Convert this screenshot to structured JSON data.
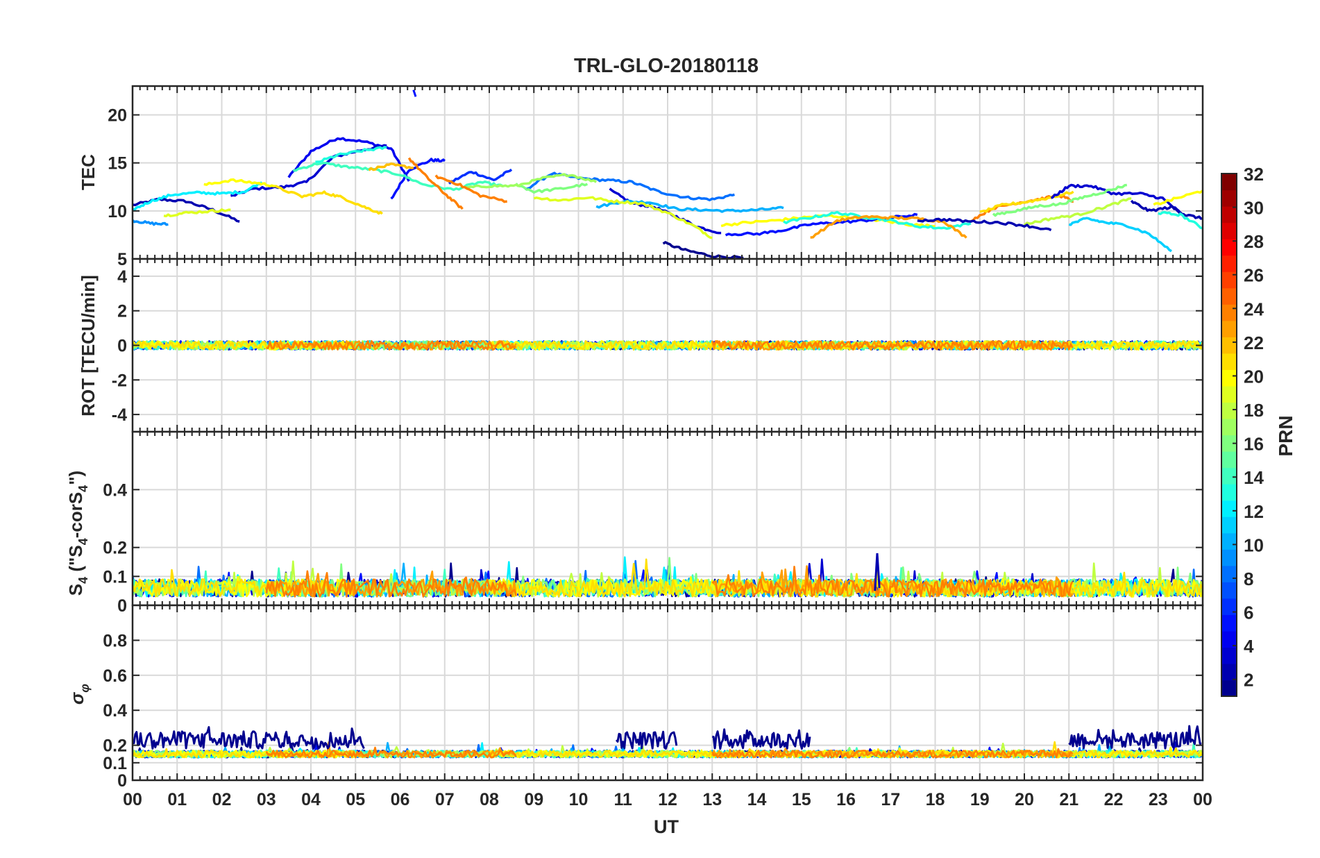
{
  "figure": {
    "title": "TRL-GLO-20180118",
    "xlabel": "UT",
    "xticks": [
      "00",
      "01",
      "02",
      "03",
      "04",
      "05",
      "06",
      "07",
      "08",
      "09",
      "10",
      "11",
      "12",
      "13",
      "14",
      "15",
      "16",
      "17",
      "18",
      "19",
      "20",
      "21",
      "22",
      "23",
      "00"
    ]
  },
  "colorbar": {
    "label": "PRN",
    "range": [
      1,
      32
    ],
    "ticks": [
      2,
      4,
      6,
      8,
      10,
      12,
      14,
      16,
      18,
      20,
      22,
      24,
      26,
      28,
      30,
      32
    ],
    "colors": [
      "#00008f",
      "#0000b0",
      "#0000d0",
      "#0000f0",
      "#0010ff",
      "#0030ff",
      "#0050ff",
      "#0070ff",
      "#0090ff",
      "#00b0ff",
      "#00d0ff",
      "#00f0ff",
      "#20ffdf",
      "#40ffbf",
      "#60ff9f",
      "#80ff80",
      "#9fff60",
      "#bfff40",
      "#dfff20",
      "#ffff00",
      "#ffdf00",
      "#ffbf00",
      "#ff9f00",
      "#ff8000",
      "#ff6000",
      "#ff4000",
      "#ff2000",
      "#ff0000",
      "#df0000",
      "#bf0000",
      "#9f0000",
      "#800000"
    ]
  },
  "chart_data": [
    {
      "type": "line",
      "panel": "TEC",
      "ylabel": "TEC",
      "ylim": [
        5,
        23
      ],
      "yticks": [
        5,
        10,
        15,
        20
      ],
      "xlim": [
        0,
        24
      ],
      "grid": true,
      "series": [
        {
          "prn": 2,
          "x": [
            0.0,
            0.6,
            1.2,
            1.8,
            2.4
          ],
          "y": [
            10.6,
            11.2,
            11.0,
            10.1,
            8.9
          ]
        },
        {
          "prn": 4,
          "x": [
            3.5,
            4.0,
            4.6,
            5.2,
            5.8,
            6.2
          ],
          "y": [
            13.5,
            16.2,
            17.6,
            17.2,
            16.5,
            13.1
          ]
        },
        {
          "prn": 3,
          "x": [
            2.2,
            2.7,
            3.4,
            3.9,
            4.5,
            5.1,
            5.7
          ],
          "y": [
            11.5,
            12.3,
            12.5,
            13.0,
            15.6,
            16.3,
            16.8
          ]
        },
        {
          "prn": 5,
          "x": [
            5.8,
            6.2,
            6.7,
            7.0
          ],
          "y": [
            11.2,
            14.3,
            15.3,
            15.2
          ]
        },
        {
          "prn": 6,
          "x": [
            7.1,
            7.6,
            8.1,
            8.5
          ],
          "y": [
            12.9,
            14.1,
            13.2,
            14.3
          ]
        },
        {
          "prn": 8,
          "x": [
            8.8,
            9.4,
            10.0,
            10.6,
            11.2,
            11.8,
            12.4,
            13.0,
            13.5
          ],
          "y": [
            12.2,
            13.9,
            13.4,
            13.2,
            13.0,
            12.0,
            11.4,
            11.2,
            11.7
          ]
        },
        {
          "prn": 1,
          "x": [
            11.9,
            12.4,
            13.0,
            13.7
          ],
          "y": [
            6.7,
            5.9,
            5.3,
            5.1
          ]
        },
        {
          "prn": 3,
          "x": [
            10.7,
            11.2,
            11.7,
            12.2,
            12.7,
            13.2
          ],
          "y": [
            12.2,
            10.8,
            10.4,
            9.4,
            8.3,
            7.7
          ]
        },
        {
          "prn": 10,
          "x": [
            10.4,
            11.0,
            11.6,
            12.2,
            12.8,
            13.4,
            14.0,
            14.6
          ],
          "y": [
            10.4,
            11.0,
            10.9,
            10.2,
            10.1,
            10.0,
            10.1,
            10.3
          ]
        },
        {
          "prn": 12,
          "x": [
            0.0,
            0.4,
            0.9,
            1.5,
            2.0,
            2.5,
            2.9
          ],
          "y": [
            10.1,
            11.0,
            11.7,
            11.9,
            11.8,
            12.0,
            13.0
          ]
        },
        {
          "prn": 9,
          "x": [
            0.0,
            0.4,
            0.8
          ],
          "y": [
            9.0,
            8.7,
            8.6
          ]
        },
        {
          "prn": 14,
          "x": [
            3.6,
            4.2,
            4.8,
            5.4,
            6.0,
            6.5,
            7.2,
            7.8,
            8.3
          ],
          "y": [
            14.2,
            15.0,
            14.6,
            14.3,
            13.8,
            12.8,
            12.2,
            13.0,
            12.6
          ]
        },
        {
          "prn": 13,
          "x": [
            4.1,
            4.6,
            5.2,
            5.7
          ],
          "y": [
            15.0,
            15.8,
            16.3,
            16.6
          ]
        },
        {
          "prn": 16,
          "x": [
            8.6,
            9.0,
            9.6,
            10.2
          ],
          "y": [
            12.8,
            12.0,
            12.3,
            12.8
          ]
        },
        {
          "prn": 17,
          "x": [
            7.4,
            8.0,
            8.6,
            9.2,
            9.8,
            10.4
          ],
          "y": [
            12.4,
            12.6,
            12.6,
            13.4,
            13.8,
            13.0
          ]
        },
        {
          "prn": 19,
          "x": [
            9.0,
            9.6,
            10.2,
            10.8,
            11.4,
            12.0,
            12.6,
            13.0
          ],
          "y": [
            11.4,
            11.1,
            11.4,
            11.0,
            10.8,
            9.8,
            8.4,
            7.2
          ]
        },
        {
          "prn": 19,
          "x": [
            0.7,
            1.2,
            1.8,
            2.2
          ],
          "y": [
            9.5,
            9.8,
            10.0,
            10.1
          ]
        },
        {
          "prn": 20,
          "x": [
            1.6,
            2.2,
            2.8,
            3.2
          ],
          "y": [
            12.7,
            13.2,
            12.9,
            12.6
          ]
        },
        {
          "prn": 21,
          "x": [
            3.2,
            3.8,
            4.3,
            4.7,
            5.2,
            5.6
          ],
          "y": [
            12.5,
            11.5,
            11.9,
            11.4,
            10.4,
            9.7
          ]
        },
        {
          "prn": 22,
          "x": [
            5.3,
            5.8,
            6.3
          ],
          "y": [
            14.3,
            14.8,
            14.5
          ]
        },
        {
          "prn": 24,
          "x": [
            6.2,
            6.6,
            7.0,
            7.4
          ],
          "y": [
            15.5,
            13.5,
            11.8,
            10.2
          ]
        },
        {
          "prn": 24,
          "x": [
            6.8,
            7.3,
            7.8,
            8.4
          ],
          "y": [
            13.6,
            12.8,
            11.6,
            11.0
          ]
        },
        {
          "prn": 20,
          "x": [
            13.2,
            13.8,
            14.4,
            15.0,
            15.6,
            16.2,
            16.8,
            17.4,
            18.0
          ],
          "y": [
            8.5,
            8.8,
            9.0,
            9.3,
            9.5,
            9.3,
            9.0,
            8.6,
            8.4
          ]
        },
        {
          "prn": 5,
          "x": [
            13.3,
            14.0,
            14.6,
            15.2,
            15.8,
            16.4,
            17.0,
            17.6
          ],
          "y": [
            7.6,
            7.6,
            8.0,
            8.6,
            8.8,
            9.0,
            9.3,
            9.6
          ]
        },
        {
          "prn": 13,
          "x": [
            14.6,
            15.2,
            15.8,
            16.4,
            17.0,
            17.6,
            18.2,
            18.8
          ],
          "y": [
            8.8,
            9.3,
            9.8,
            9.4,
            9.0,
            8.4,
            8.2,
            8.7
          ]
        },
        {
          "prn": 23,
          "x": [
            15.2,
            15.8,
            16.4,
            17.0,
            17.6,
            18.2,
            18.7
          ],
          "y": [
            7.2,
            9.0,
            9.4,
            9.3,
            9.2,
            8.9,
            7.2
          ]
        },
        {
          "prn": 24,
          "x": [
            18.8,
            19.3,
            19.8,
            20.3,
            20.8,
            21.1
          ],
          "y": [
            9.0,
            10.3,
            10.8,
            11.2,
            11.6,
            11.0
          ]
        },
        {
          "prn": 21,
          "x": [
            19.0,
            19.5,
            20.0,
            20.6,
            21.1
          ],
          "y": [
            9.8,
            10.6,
            10.9,
            11.4,
            12.0
          ]
        },
        {
          "prn": 3,
          "x": [
            20.6,
            21.0,
            21.5,
            22.0,
            22.6,
            23.1,
            23.5
          ],
          "y": [
            11.3,
            12.6,
            12.6,
            11.8,
            11.8,
            11.3,
            9.8
          ]
        },
        {
          "prn": 2,
          "x": [
            22.4,
            22.8,
            23.3,
            23.6,
            24.0
          ],
          "y": [
            11.0,
            10.0,
            10.4,
            9.6,
            9.2
          ]
        },
        {
          "prn": 11,
          "x": [
            21.0,
            21.4,
            21.8,
            22.3,
            22.8,
            23.3
          ],
          "y": [
            8.6,
            9.2,
            8.8,
            8.5,
            7.6,
            5.8
          ]
        },
        {
          "prn": 16,
          "x": [
            19.3,
            19.8,
            20.3,
            20.8,
            21.3,
            21.8,
            22.3
          ],
          "y": [
            9.6,
            10.0,
            10.5,
            10.7,
            11.4,
            12.0,
            12.7
          ]
        },
        {
          "prn": 18,
          "x": [
            20.0,
            20.6,
            21.2,
            21.8,
            22.4
          ],
          "y": [
            8.6,
            9.2,
            9.6,
            10.4,
            11.3
          ]
        },
        {
          "prn": 20,
          "x": [
            22.9,
            23.4,
            24.0
          ],
          "y": [
            10.6,
            11.3,
            12.1
          ]
        },
        {
          "prn": 13,
          "x": [
            23.0,
            23.5,
            24.0
          ],
          "y": [
            9.8,
            9.6,
            8.2
          ]
        },
        {
          "prn": 2,
          "x": [
            17.6,
            18.2,
            18.8,
            19.4,
            20.0,
            20.6
          ],
          "y": [
            9.0,
            9.1,
            8.9,
            8.8,
            8.5,
            8.0
          ]
        }
      ]
    },
    {
      "type": "line",
      "panel": "ROT",
      "ylabel": "ROT [TECU/min]",
      "ylim": [
        -5,
        5
      ],
      "yticks": [
        -4,
        -2,
        0,
        2,
        4
      ],
      "xlim": [
        0,
        24
      ],
      "grid": true,
      "series_note": "all PRNs fluctuate within about ±0.4 TECU/min around 0 across the day"
    },
    {
      "type": "line",
      "panel": "S4",
      "ylabel": "S4 (\"S4-corS4\")",
      "ylim": [
        0,
        0.6
      ],
      "yticks": [
        0,
        0.1,
        0.2,
        0.4
      ],
      "xlim": [
        0,
        24
      ],
      "grid": true,
      "series_note": "values mostly 0.02–0.12 with spikes to about 0.17; largest spike about 0.18 near 16.7 UT"
    },
    {
      "type": "line",
      "panel": "sigma_phi",
      "ylabel": "σφ",
      "ylim": [
        0,
        1
      ],
      "yticks": [
        0,
        0.1,
        0.2,
        0.4,
        0.6,
        0.8
      ],
      "xlim": [
        0,
        24
      ],
      "grid": true,
      "series_note": "baseline 0.12–0.18; PRN 1 elevated 0.2–0.34 during 00–05, 11–12, 13–15 and 21–24 UT"
    }
  ]
}
